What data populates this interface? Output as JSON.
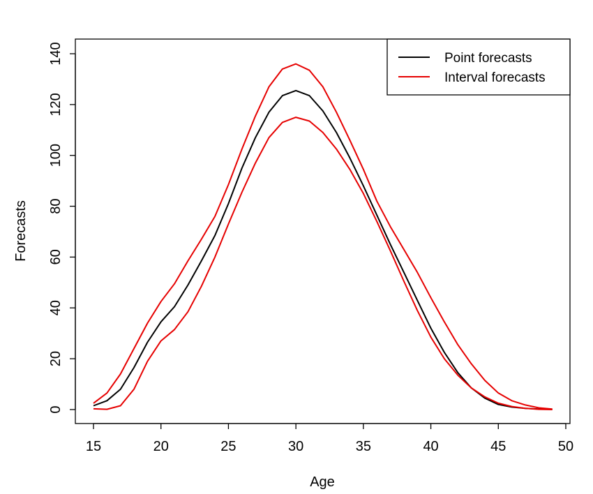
{
  "chart_data": {
    "type": "line",
    "title": "",
    "xlabel": "Age",
    "ylabel": "Forecasts",
    "xlim": [
      15,
      50
    ],
    "ylim": [
      0,
      140
    ],
    "x_ticks": [
      "15",
      "20",
      "25",
      "30",
      "35",
      "40",
      "45",
      "50"
    ],
    "y_ticks": [
      "0",
      "20",
      "40",
      "60",
      "80",
      "100",
      "120",
      "140"
    ],
    "grid": false,
    "legend_position": "top-right",
    "x": [
      15,
      16,
      17,
      18,
      19,
      20,
      21,
      22,
      23,
      24,
      25,
      26,
      27,
      28,
      29,
      30,
      31,
      32,
      33,
      34,
      35,
      36,
      37,
      38,
      39,
      40,
      41,
      42,
      43,
      44,
      45,
      46,
      47,
      48,
      49
    ],
    "series": [
      {
        "name": "Point forecasts",
        "color": "#000000",
        "values": [
          1.5,
          3.5,
          8,
          16.5,
          26.5,
          34.5,
          40.5,
          49,
          58.5,
          68.5,
          81,
          95,
          107,
          117,
          123.5,
          125.5,
          123.5,
          117.5,
          109,
          99,
          88,
          76.5,
          65,
          54,
          43,
          32,
          22.5,
          14.5,
          8.5,
          4.5,
          2,
          1,
          0.5,
          0.2,
          0.1
        ]
      },
      {
        "name": "Interval forecasts",
        "color": "#e60000",
        "values": [
          2.5,
          6.5,
          14,
          24,
          34,
          42.5,
          49.5,
          58.5,
          67,
          76,
          88.5,
          102.5,
          115.5,
          127,
          134,
          136,
          133.5,
          127,
          117,
          106,
          94.5,
          82,
          72,
          63,
          54,
          44,
          34.5,
          25.5,
          18,
          11.5,
          6.5,
          3.5,
          1.8,
          0.7,
          0.2
        ]
      },
      {
        "name": "",
        "legend": false,
        "color": "#e60000",
        "values": [
          0.3,
          0.1,
          1.5,
          8,
          19,
          27,
          31.5,
          38.5,
          48.5,
          60,
          73,
          85.5,
          97,
          107,
          113,
          115,
          113.5,
          109,
          102.5,
          94.5,
          85,
          74,
          62.5,
          50.5,
          39,
          28.5,
          20,
          13.5,
          8.5,
          5,
          2.5,
          1.2,
          0.5,
          0.1,
          0
        ]
      }
    ]
  }
}
